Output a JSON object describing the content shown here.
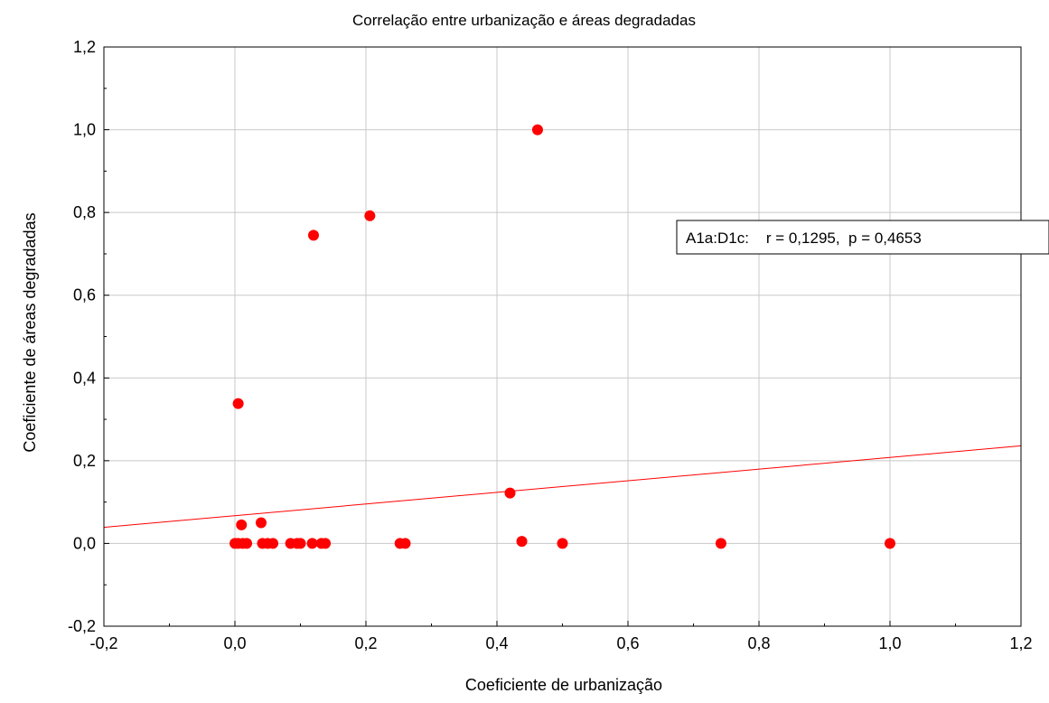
{
  "chart_data": {
    "type": "scatter",
    "title": "Correlação entre urbanização e áreas degradadas",
    "xlabel": "Coeficiente de urbanização",
    "ylabel": "Coeficiente de áreas degradadas",
    "xlim": [
      -0.2,
      1.2
    ],
    "ylim": [
      -0.2,
      1.2
    ],
    "x_ticks": [
      -0.2,
      0.0,
      0.2,
      0.4,
      0.6,
      0.8,
      1.0,
      1.2
    ],
    "x_tick_labels": [
      "-0,2",
      "0,0",
      "0,2",
      "0,4",
      "0,6",
      "0,8",
      "1,0",
      "1,2"
    ],
    "y_ticks": [
      -0.2,
      0.0,
      0.2,
      0.4,
      0.6,
      0.8,
      1.0,
      1.2
    ],
    "y_tick_labels": [
      "-0,2",
      "0,0",
      "0,2",
      "0,4",
      "0,6",
      "0,8",
      "1,0",
      "1,2"
    ],
    "grid": true,
    "marker_color": "#ff0000",
    "regression": {
      "color": "#ff0000",
      "x": [
        -0.2,
        1.2
      ],
      "y": [
        0.039,
        0.236
      ]
    },
    "annotation": {
      "text": "A1a:D1c:    r = 0,1295,  p = 0,4653",
      "placement": "right"
    },
    "series": [
      {
        "points": [
          [
            0.462,
            1.0
          ],
          [
            0.206,
            0.792
          ],
          [
            0.12,
            0.745
          ],
          [
            0.005,
            0.338
          ],
          [
            0.42,
            0.122
          ],
          [
            0.04,
            0.05
          ],
          [
            0.01,
            0.045
          ],
          [
            0.438,
            0.005
          ],
          [
            0.0,
            0.0
          ],
          [
            0.005,
            0.0
          ],
          [
            0.012,
            0.0
          ],
          [
            0.018,
            0.0
          ],
          [
            0.042,
            0.0
          ],
          [
            0.05,
            0.0
          ],
          [
            0.058,
            0.0
          ],
          [
            0.085,
            0.0
          ],
          [
            0.095,
            0.0
          ],
          [
            0.1,
            0.0
          ],
          [
            0.118,
            0.0
          ],
          [
            0.132,
            0.0
          ],
          [
            0.138,
            0.0
          ],
          [
            0.252,
            0.0
          ],
          [
            0.26,
            0.0
          ],
          [
            0.5,
            0.0
          ],
          [
            0.742,
            0.0
          ],
          [
            1.0,
            0.0
          ]
        ]
      }
    ]
  }
}
